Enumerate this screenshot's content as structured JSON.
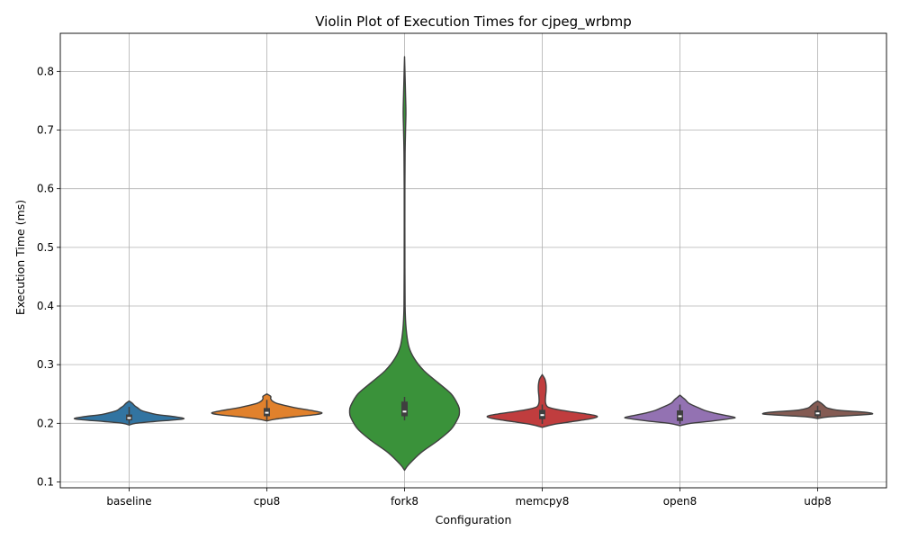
{
  "chart_data": {
    "type": "violin",
    "title": "Violin Plot of Execution Times for cjpeg_wrbmp",
    "xlabel": "Configuration",
    "ylabel": "Execution Time (ms)",
    "ylim": [
      0.09,
      0.865
    ],
    "yticks": [
      "0.1",
      "0.2",
      "0.3",
      "0.4",
      "0.5",
      "0.6",
      "0.7",
      "0.8"
    ],
    "grid": true,
    "categories": [
      "baseline",
      "cpu8",
      "fork8",
      "memcpy8",
      "open8",
      "udp8"
    ],
    "colors": [
      "#3274a1",
      "#e1812c",
      "#3a923a",
      "#c03d3e",
      "#9372b2",
      "#845b53"
    ],
    "violins": [
      {
        "name": "baseline",
        "profile": [
          [
            0.197,
            0.0
          ],
          [
            0.2,
            0.12
          ],
          [
            0.203,
            0.45
          ],
          [
            0.206,
            0.85
          ],
          [
            0.208,
            1.0
          ],
          [
            0.211,
            0.85
          ],
          [
            0.215,
            0.5
          ],
          [
            0.219,
            0.32
          ],
          [
            0.222,
            0.22
          ],
          [
            0.226,
            0.16
          ],
          [
            0.23,
            0.1
          ],
          [
            0.234,
            0.06
          ],
          [
            0.238,
            0.0
          ]
        ],
        "q1": 0.205,
        "median": 0.209,
        "q3": 0.215,
        "whisker_low": 0.199,
        "whisker_high": 0.228
      },
      {
        "name": "cpu8",
        "profile": [
          [
            0.204,
            0.0
          ],
          [
            0.207,
            0.15
          ],
          [
            0.211,
            0.5
          ],
          [
            0.215,
            0.9
          ],
          [
            0.218,
            1.0
          ],
          [
            0.222,
            0.8
          ],
          [
            0.226,
            0.55
          ],
          [
            0.23,
            0.35
          ],
          [
            0.234,
            0.18
          ],
          [
            0.238,
            0.1
          ],
          [
            0.242,
            0.07
          ],
          [
            0.246,
            0.07
          ],
          [
            0.25,
            0.0
          ]
        ],
        "q1": 0.212,
        "median": 0.218,
        "q3": 0.226,
        "whisker_low": 0.205,
        "whisker_high": 0.24
      },
      {
        "name": "fork8",
        "profile": [
          [
            0.12,
            0.0
          ],
          [
            0.13,
            0.08
          ],
          [
            0.15,
            0.3
          ],
          [
            0.17,
            0.6
          ],
          [
            0.19,
            0.85
          ],
          [
            0.21,
            0.98
          ],
          [
            0.22,
            1.0
          ],
          [
            0.23,
            0.98
          ],
          [
            0.25,
            0.85
          ],
          [
            0.27,
            0.6
          ],
          [
            0.29,
            0.35
          ],
          [
            0.31,
            0.18
          ],
          [
            0.33,
            0.08
          ],
          [
            0.36,
            0.03
          ],
          [
            0.4,
            0.01
          ],
          [
            0.5,
            0.006
          ],
          [
            0.6,
            0.006
          ],
          [
            0.66,
            0.01
          ],
          [
            0.7,
            0.018
          ],
          [
            0.73,
            0.025
          ],
          [
            0.76,
            0.018
          ],
          [
            0.79,
            0.01
          ],
          [
            0.825,
            0.0
          ]
        ],
        "q1": 0.212,
        "median": 0.22,
        "q3": 0.237,
        "whisker_low": 0.205,
        "whisker_high": 0.245
      },
      {
        "name": "memcpy8",
        "profile": [
          [
            0.193,
            0.0
          ],
          [
            0.198,
            0.2
          ],
          [
            0.203,
            0.55
          ],
          [
            0.208,
            0.9
          ],
          [
            0.212,
            1.0
          ],
          [
            0.216,
            0.8
          ],
          [
            0.22,
            0.5
          ],
          [
            0.224,
            0.25
          ],
          [
            0.228,
            0.1
          ],
          [
            0.235,
            0.06
          ],
          [
            0.245,
            0.06
          ],
          [
            0.255,
            0.07
          ],
          [
            0.265,
            0.07
          ],
          [
            0.275,
            0.05
          ],
          [
            0.283,
            0.0
          ]
        ],
        "q1": 0.207,
        "median": 0.214,
        "q3": 0.223,
        "whisker_low": 0.199,
        "whisker_high": 0.232
      },
      {
        "name": "open8",
        "profile": [
          [
            0.196,
            0.0
          ],
          [
            0.2,
            0.2
          ],
          [
            0.204,
            0.6
          ],
          [
            0.208,
            0.92
          ],
          [
            0.21,
            1.0
          ],
          [
            0.214,
            0.8
          ],
          [
            0.218,
            0.6
          ],
          [
            0.222,
            0.45
          ],
          [
            0.226,
            0.35
          ],
          [
            0.23,
            0.25
          ],
          [
            0.235,
            0.15
          ],
          [
            0.24,
            0.1
          ],
          [
            0.244,
            0.05
          ],
          [
            0.248,
            0.0
          ]
        ],
        "q1": 0.204,
        "median": 0.212,
        "q3": 0.222,
        "whisker_low": 0.199,
        "whisker_high": 0.232
      },
      {
        "name": "udp8",
        "profile": [
          [
            0.208,
            0.0
          ],
          [
            0.211,
            0.2
          ],
          [
            0.214,
            0.75
          ],
          [
            0.216,
            1.0
          ],
          [
            0.219,
            0.85
          ],
          [
            0.222,
            0.4
          ],
          [
            0.226,
            0.18
          ],
          [
            0.23,
            0.12
          ],
          [
            0.234,
            0.07
          ],
          [
            0.238,
            0.0
          ]
        ],
        "q1": 0.212,
        "median": 0.217,
        "q3": 0.222,
        "whisker_low": 0.209,
        "whisker_high": 0.23
      }
    ]
  }
}
